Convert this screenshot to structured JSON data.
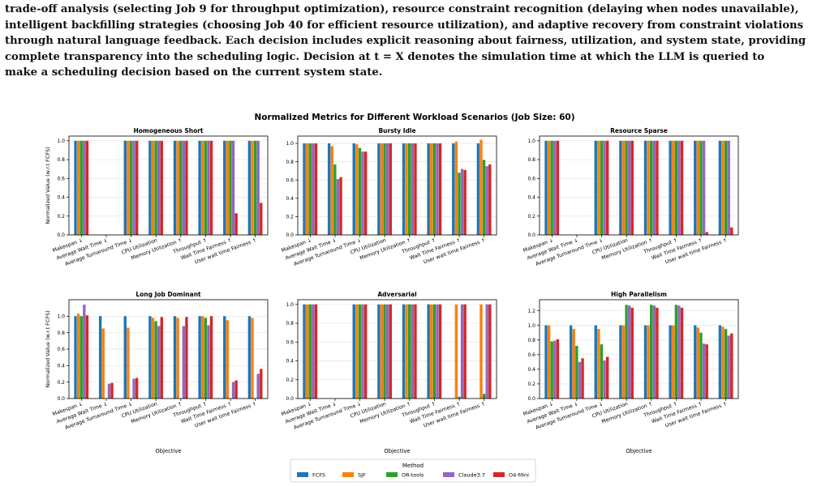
{
  "paper": {
    "lines": [
      "trade-off analysis (selecting Job 9 for throughput optimization), resource constraint recognition (delaying when nodes unavailable),",
      "intelligent backfilling strategies (choosing Job 40 for efficient resource utilization), and adaptive recovery from constraint violations",
      "through natural language feedback. Each decision includes explicit reasoning about fairness, utilization, and system state, providing",
      "complete transparency into the scheduling logic. Decision at t = X denotes the simulation time at which the LLM is queried to",
      "make a scheduling decision based on the current system state."
    ]
  },
  "figure": {
    "suptitle": "Normalized Metrics for Different Workload Scenarios (Job Size: 60)",
    "ylabel": "Normalized Value (w.r.t FCFS)",
    "xlabel": "Objective",
    "legend_title": "Method",
    "methods": [
      {
        "name": "FCFS",
        "color": "#1f77b4"
      },
      {
        "name": "SJF",
        "color": "#ff7f0e"
      },
      {
        "name": "OR-tools",
        "color": "#2ca02c"
      },
      {
        "name": "Claude3.7",
        "color": "#9467bd"
      },
      {
        "name": "O4-Mini",
        "color": "#d62728"
      }
    ],
    "objectives": [
      "Makespan ↓",
      "Average Wait Time ↓",
      "Average Turnaround Time ↓",
      "CPU Utilization",
      "Memory Utilization ↑",
      "Throughput ↑",
      "Wait Time Fairness ↑",
      "User wait time Fairness ↑"
    ]
  },
  "chart_data": [
    {
      "type": "bar",
      "title": "Homogeneous Short",
      "ylim": [
        0,
        1.05
      ],
      "yticks": [
        "0.0",
        "0.2",
        "0.4",
        "0.6",
        "0.8",
        "1.0"
      ],
      "series": [
        {
          "name": "FCFS",
          "values": [
            1.0,
            0,
            1.0,
            1.0,
            1.0,
            1.0,
            1.0,
            1.0
          ]
        },
        {
          "name": "SJF",
          "values": [
            1.0,
            0,
            1.0,
            1.0,
            1.0,
            1.0,
            1.0,
            1.0
          ]
        },
        {
          "name": "OR-tools",
          "values": [
            1.0,
            0,
            1.0,
            1.0,
            1.0,
            1.0,
            1.0,
            1.0
          ]
        },
        {
          "name": "Claude3.7",
          "values": [
            1.0,
            0,
            1.0,
            1.0,
            1.0,
            1.0,
            1.0,
            1.0
          ]
        },
        {
          "name": "O4-Mini",
          "values": [
            1.0,
            0,
            1.0,
            1.0,
            1.0,
            1.0,
            0.23,
            0.34
          ]
        }
      ]
    },
    {
      "type": "bar",
      "title": "Bursty Idle",
      "ylim": [
        0,
        1.08
      ],
      "yticks": [
        "0.0",
        "0.2",
        "0.4",
        "0.6",
        "0.8",
        "1.0"
      ],
      "series": [
        {
          "name": "FCFS",
          "values": [
            1.0,
            1.0,
            1.0,
            1.0,
            1.0,
            1.0,
            1.0,
            1.0
          ]
        },
        {
          "name": "SJF",
          "values": [
            1.0,
            0.97,
            0.99,
            1.0,
            1.0,
            1.0,
            1.02,
            1.04
          ]
        },
        {
          "name": "OR-tools",
          "values": [
            1.0,
            0.77,
            0.95,
            1.0,
            1.0,
            1.0,
            0.68,
            0.82
          ]
        },
        {
          "name": "Claude3.7",
          "values": [
            1.0,
            0.61,
            0.91,
            1.0,
            1.0,
            1.0,
            0.72,
            0.75
          ]
        },
        {
          "name": "O4-Mini",
          "values": [
            1.0,
            0.63,
            0.91,
            1.0,
            1.0,
            1.0,
            0.71,
            0.77
          ]
        }
      ]
    },
    {
      "type": "bar",
      "title": "Resource Sparse",
      "ylim": [
        0,
        1.05
      ],
      "yticks": [
        "0.0",
        "0.2",
        "0.4",
        "0.6",
        "0.8",
        "1.0"
      ],
      "series": [
        {
          "name": "FCFS",
          "values": [
            1.0,
            0,
            1.0,
            1.0,
            1.0,
            1.0,
            1.0,
            1.0
          ]
        },
        {
          "name": "SJF",
          "values": [
            1.0,
            0,
            1.0,
            1.0,
            1.0,
            1.0,
            1.0,
            1.0
          ]
        },
        {
          "name": "OR-tools",
          "values": [
            1.0,
            0,
            1.0,
            1.0,
            1.0,
            1.0,
            1.0,
            1.0
          ]
        },
        {
          "name": "Claude3.7",
          "values": [
            1.0,
            0,
            1.0,
            1.0,
            1.0,
            1.0,
            1.0,
            1.0
          ]
        },
        {
          "name": "O4-Mini",
          "values": [
            1.0,
            0,
            1.0,
            1.0,
            1.0,
            1.0,
            0.03,
            0.08
          ]
        }
      ]
    },
    {
      "type": "bar",
      "title": "Long Job Dominant",
      "ylim": [
        0,
        1.2
      ],
      "yticks": [
        "0.0",
        "0.2",
        "0.4",
        "0.6",
        "0.8",
        "1.0"
      ],
      "series": [
        {
          "name": "FCFS",
          "values": [
            1.0,
            1.0,
            1.0,
            1.0,
            1.0,
            1.0,
            1.0,
            1.0
          ]
        },
        {
          "name": "SJF",
          "values": [
            1.03,
            0.85,
            0.86,
            0.98,
            0.98,
            1.0,
            0.95,
            0.98
          ]
        },
        {
          "name": "OR-tools",
          "values": [
            1.0,
            0,
            0,
            0.94,
            0,
            0.98,
            0,
            0
          ]
        },
        {
          "name": "Claude3.7",
          "values": [
            1.14,
            0.18,
            0.24,
            0.88,
            0.88,
            0.89,
            0.2,
            0.3
          ]
        },
        {
          "name": "O4-Mini",
          "values": [
            1.01,
            0.19,
            0.25,
            0.99,
            0.99,
            1.0,
            0.22,
            0.36
          ]
        }
      ]
    },
    {
      "type": "bar",
      "title": "Adversarial",
      "ylim": [
        0,
        1.05
      ],
      "yticks": [
        "0.0",
        "0.2",
        "0.4",
        "0.6",
        "0.8",
        "1.0"
      ],
      "series": [
        {
          "name": "FCFS",
          "values": [
            1.0,
            0,
            1.0,
            1.0,
            1.0,
            1.0,
            0,
            0
          ]
        },
        {
          "name": "SJF",
          "values": [
            1.0,
            0,
            1.0,
            1.0,
            1.0,
            1.0,
            1.0,
            1.0
          ]
        },
        {
          "name": "OR-tools",
          "values": [
            1.0,
            0,
            1.0,
            1.0,
            1.0,
            1.0,
            0.02,
            0.05
          ]
        },
        {
          "name": "Claude3.7",
          "values": [
            1.0,
            0,
            1.0,
            1.0,
            1.0,
            1.0,
            1.0,
            1.0
          ]
        },
        {
          "name": "O4-Mini",
          "values": [
            1.0,
            0,
            1.0,
            1.0,
            1.0,
            1.0,
            1.0,
            1.0
          ]
        }
      ]
    },
    {
      "type": "bar",
      "title": "High Parallelism",
      "ylim": [
        0,
        1.35
      ],
      "yticks": [
        "0.0",
        "0.2",
        "0.4",
        "0.6",
        "0.8",
        "1.0",
        "1.2"
      ],
      "series": [
        {
          "name": "FCFS",
          "values": [
            1.0,
            1.0,
            1.0,
            1.0,
            1.0,
            1.0,
            1.0,
            1.0
          ]
        },
        {
          "name": "SJF",
          "values": [
            1.0,
            0.95,
            0.95,
            1.0,
            1.0,
            1.0,
            0.97,
            0.98
          ]
        },
        {
          "name": "OR-tools",
          "values": [
            0.78,
            0.72,
            0.74,
            1.28,
            1.28,
            1.28,
            0.9,
            0.95
          ]
        },
        {
          "name": "Claude3.7",
          "values": [
            0.79,
            0.5,
            0.52,
            1.27,
            1.27,
            1.27,
            0.75,
            0.86
          ]
        },
        {
          "name": "O4-Mini",
          "values": [
            0.81,
            0.55,
            0.57,
            1.24,
            1.24,
            1.24,
            0.74,
            0.89
          ]
        }
      ]
    }
  ]
}
